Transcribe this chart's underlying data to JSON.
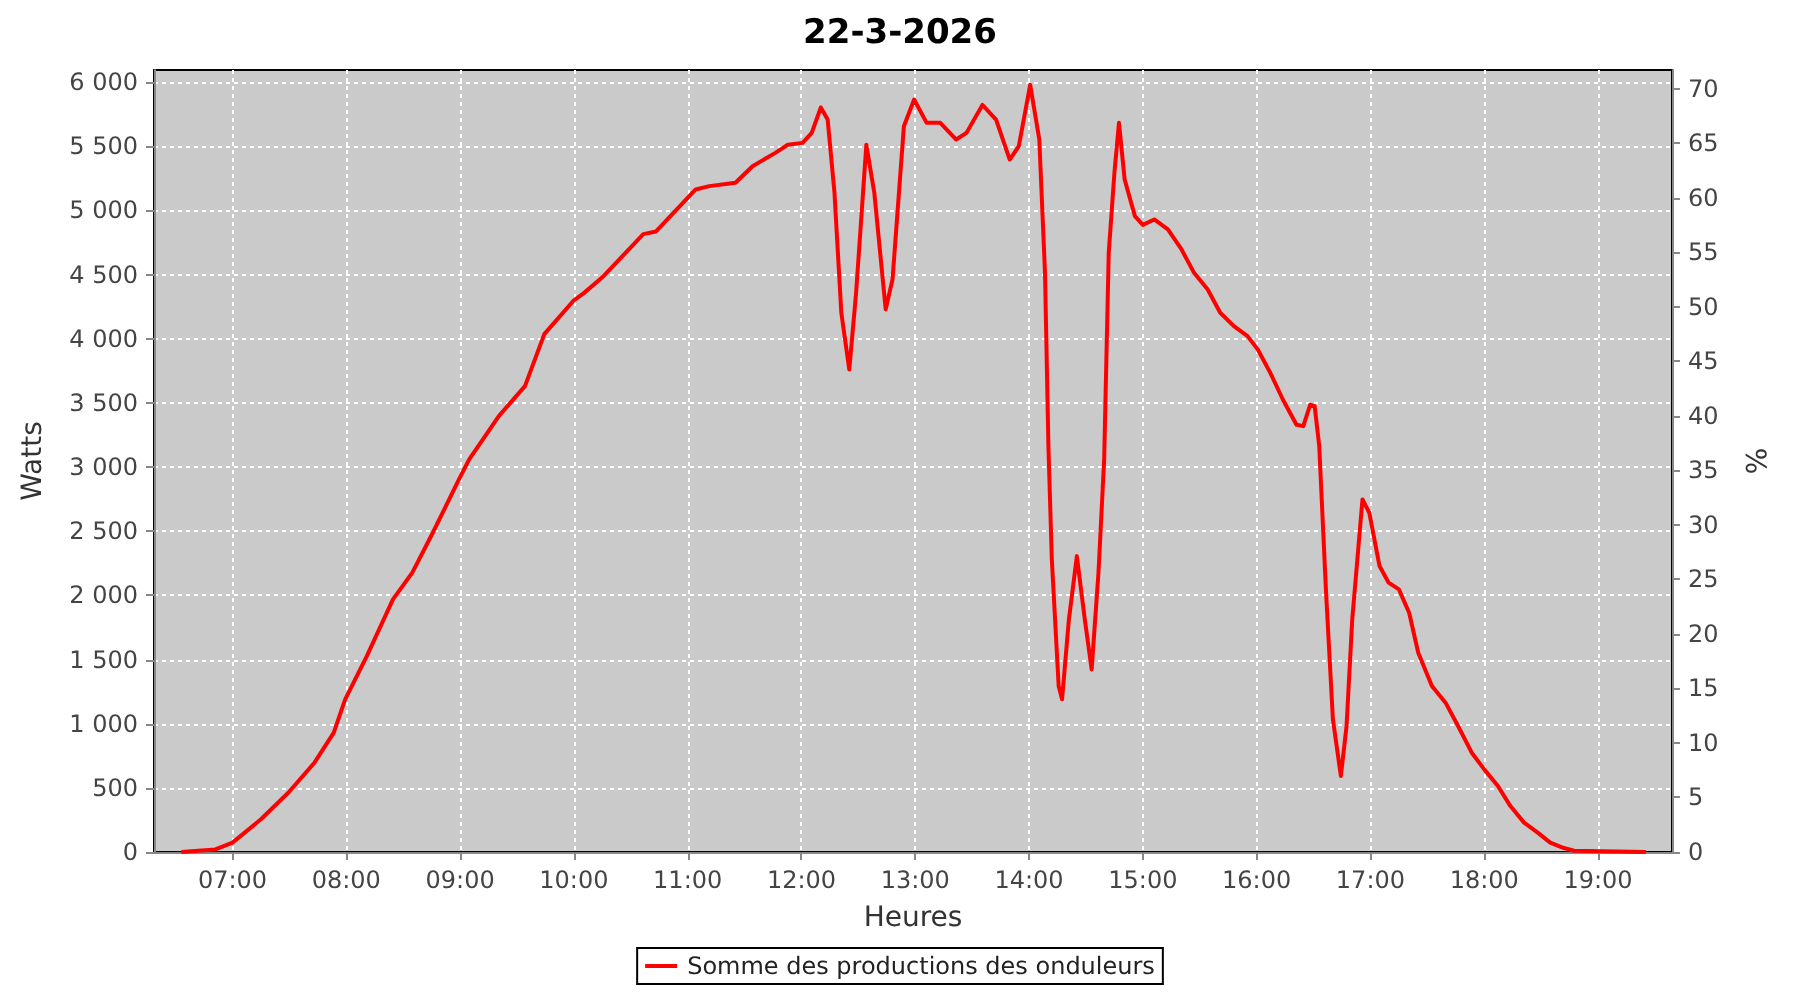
{
  "chart_data": {
    "type": "line",
    "title": "22-3-2026",
    "xlabel": "Heures",
    "ylabel": "Watts",
    "y2label": "%",
    "xlim": [
      6.31,
      19.65
    ],
    "xticks": [
      {
        "value": 7,
        "label": "07:00"
      },
      {
        "value": 8,
        "label": "08:00"
      },
      {
        "value": 9,
        "label": "09:00"
      },
      {
        "value": 10,
        "label": "10:00"
      },
      {
        "value": 11,
        "label": "11:00"
      },
      {
        "value": 12,
        "label": "12:00"
      },
      {
        "value": 13,
        "label": "13:00"
      },
      {
        "value": 14,
        "label": "14:00"
      },
      {
        "value": 15,
        "label": "15:00"
      },
      {
        "value": 16,
        "label": "16:00"
      },
      {
        "value": 17,
        "label": "17:00"
      },
      {
        "value": 18,
        "label": "18:00"
      },
      {
        "value": 19,
        "label": "19:00"
      }
    ],
    "ylim": [
      0,
      6095
    ],
    "yticks": [
      0,
      500,
      {
        "value": 1000,
        "label": "1 000"
      },
      {
        "value": 1500,
        "label": "1 500"
      },
      {
        "value": 2000,
        "label": "2 000"
      },
      {
        "value": 2500,
        "label": "2 500"
      },
      {
        "value": 3000,
        "label": "3 000"
      },
      {
        "value": 3500,
        "label": "3 500"
      },
      {
        "value": 4000,
        "label": "4 000"
      },
      {
        "value": 4500,
        "label": "4 500"
      },
      {
        "value": 5000,
        "label": "5 000"
      },
      {
        "value": 5500,
        "label": "5 500"
      },
      {
        "value": 6000,
        "label": "6 000"
      }
    ],
    "y2lim": [
      0,
      71.7
    ],
    "y2ticks": [
      0,
      5,
      10,
      15,
      20,
      25,
      30,
      35,
      40,
      45,
      50,
      55,
      60,
      65,
      70
    ],
    "grid": true,
    "legend": "bottom",
    "line_style": "solid",
    "series": [
      {
        "name": "Somme des productions des onduleurs",
        "color": "#ff0000",
        "x": [
          6.55,
          6.85,
          7.0,
          7.25,
          7.49,
          7.72,
          7.89,
          7.99,
          8.18,
          8.41,
          8.58,
          8.76,
          8.99,
          9.08,
          9.22,
          9.34,
          9.57,
          9.74,
          10.0,
          10.09,
          10.26,
          10.61,
          10.72,
          11.07,
          11.19,
          11.42,
          11.57,
          11.77,
          11.88,
          12.01,
          12.09,
          12.17,
          12.23,
          12.29,
          12.35,
          12.42,
          12.48,
          12.57,
          12.64,
          12.74,
          12.8,
          12.9,
          12.99,
          13.1,
          13.22,
          13.36,
          13.45,
          13.59,
          13.71,
          13.83,
          13.91,
          14.01,
          14.09,
          14.14,
          14.17,
          14.2,
          14.26,
          14.29,
          14.35,
          14.42,
          14.49,
          14.55,
          14.61,
          14.66,
          14.7,
          14.75,
          14.79,
          14.84,
          14.93,
          15.0,
          15.1,
          15.22,
          15.34,
          15.45,
          15.57,
          15.68,
          15.8,
          15.92,
          16.01,
          16.12,
          16.23,
          16.35,
          16.41,
          16.47,
          16.51,
          16.55,
          16.61,
          16.67,
          16.74,
          16.79,
          16.84,
          16.93,
          16.99,
          17.08,
          17.16,
          17.25,
          17.34,
          17.42,
          17.54,
          17.66,
          17.77,
          17.89,
          18.0,
          18.12,
          18.23,
          18.35,
          18.47,
          18.58,
          18.7,
          18.79,
          19.42
        ],
        "values": [
          0,
          20,
          73,
          255,
          462,
          696,
          930,
          1190,
          1527,
          1969,
          2177,
          2488,
          2904,
          3060,
          3242,
          3397,
          3631,
          4036,
          4300,
          4358,
          4488,
          4816,
          4836,
          5164,
          5190,
          5216,
          5345,
          5449,
          5512,
          5527,
          5605,
          5803,
          5709,
          5138,
          4203,
          3761,
          4358,
          5512,
          5138,
          4229,
          4462,
          5657,
          5865,
          5683,
          5683,
          5553,
          5605,
          5823,
          5709,
          5397,
          5501,
          5979,
          5553,
          4514,
          3164,
          2281,
          1294,
          1190,
          1813,
          2306,
          1813,
          1423,
          2177,
          3060,
          4670,
          5294,
          5683,
          5242,
          4956,
          4888,
          4930,
          4852,
          4696,
          4514,
          4384,
          4203,
          4099,
          4021,
          3917,
          3735,
          3527,
          3330,
          3319,
          3486,
          3475,
          3164,
          2021,
          1034,
          592,
          982,
          1813,
          2748,
          2644,
          2229,
          2099,
          2047,
          1865,
          1553,
          1294,
          1164,
          982,
          774,
          644,
          514,
          358,
          229,
          151,
          73,
          31,
          10,
          0
        ]
      }
    ]
  }
}
